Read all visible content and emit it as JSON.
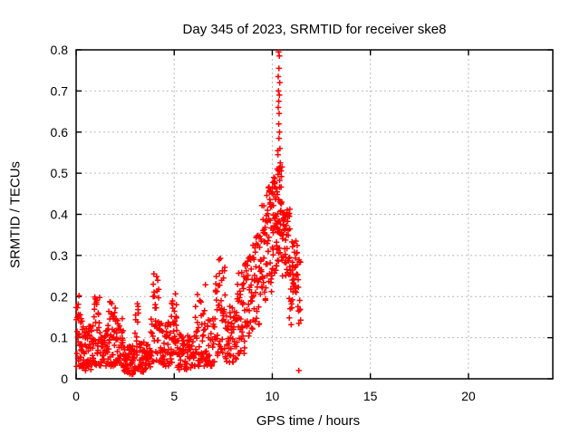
{
  "title": "Day 345 of 2023, SRMTID for receiver ske8",
  "colors": {
    "background": "#ffffff",
    "points": "#ff0000",
    "grid": "#b9b9b9",
    "frame": "#000000",
    "text": "#000000"
  },
  "chart_data": {
    "type": "scatter",
    "title": "Day 345 of 2023, SRMTID for receiver ske8",
    "xlabel": "GPS time / hours",
    "ylabel": "SRMTID / TECUs",
    "xlim": [
      0,
      24.3
    ],
    "ylim": [
      0,
      0.8
    ],
    "xticks": [
      0,
      5,
      10,
      15,
      20
    ],
    "xtick_labels": [
      "0",
      "5",
      "10",
      "15",
      "20"
    ],
    "yticks": [
      0,
      0.1,
      0.2,
      0.3,
      0.4,
      0.5,
      0.6,
      0.7,
      0.8
    ],
    "ytick_labels": [
      "0",
      "0.1",
      "0.2",
      "0.3",
      "0.4",
      "0.5",
      "0.6",
      "0.7",
      "0.8"
    ],
    "grid": true,
    "grid_style": "dashed",
    "legend": "none",
    "marker": "plus",
    "series_name": "SRMTID",
    "description": "Dense scatter of ~1000 red plus markers from 0 to ~11.4 h GPS time; quiet noisy baseline 0.02-0.2 TECU before 8 h with spikes near 1.0, 1.8, 3.0, 4.0 (0.26), 5.0, 6.3, 7.4 (0.30) h; rising ramp 8-10 h from ~0.1 to ~0.45; sharp spike peaking at 0.80 near 10.3 h; tail 0.15-0.42 until data ends at ~11.4 h; no data after 11.4 h.",
    "seed": 20233451,
    "point_bands": [
      [
        0.0,
        0.3,
        28,
        0.03,
        0.18,
        1.3
      ],
      [
        0.05,
        0.25,
        3,
        0.14,
        0.19,
        1.0
      ],
      [
        0.3,
        0.9,
        55,
        0.02,
        0.13,
        1.2
      ],
      [
        0.9,
        1.2,
        30,
        0.03,
        0.2,
        1.5
      ],
      [
        1.2,
        1.6,
        35,
        0.03,
        0.12,
        1.2
      ],
      [
        1.6,
        2.0,
        40,
        0.03,
        0.19,
        1.5
      ],
      [
        2.0,
        2.4,
        35,
        0.03,
        0.15,
        1.3
      ],
      [
        2.4,
        3.0,
        60,
        0.01,
        0.08,
        1.0
      ],
      [
        3.0,
        3.2,
        18,
        0.02,
        0.2,
        1.3
      ],
      [
        3.2,
        3.8,
        50,
        0.015,
        0.09,
        1.0
      ],
      [
        3.8,
        4.3,
        42,
        0.04,
        0.26,
        1.3
      ],
      [
        4.3,
        4.8,
        38,
        0.03,
        0.14,
        1.2
      ],
      [
        4.8,
        5.15,
        32,
        0.04,
        0.215,
        1.3
      ],
      [
        5.15,
        6.0,
        60,
        0.02,
        0.11,
        1.2
      ],
      [
        6.0,
        6.6,
        45,
        0.03,
        0.23,
        1.4
      ],
      [
        6.6,
        7.1,
        38,
        0.03,
        0.16,
        1.3
      ],
      [
        7.1,
        7.6,
        42,
        0.05,
        0.3,
        1.4
      ],
      [
        7.6,
        8.2,
        50,
        0.04,
        0.18,
        1.2
      ],
      [
        8.2,
        8.6,
        36,
        0.06,
        0.26,
        1.1
      ],
      [
        8.6,
        9.0,
        36,
        0.1,
        0.3,
        1.0
      ],
      [
        9.0,
        9.4,
        36,
        0.13,
        0.35,
        1.0
      ],
      [
        9.4,
        9.7,
        30,
        0.17,
        0.43,
        1.0
      ],
      [
        9.7,
        10.0,
        36,
        0.21,
        0.47,
        1.0
      ],
      [
        10.0,
        10.2,
        30,
        0.25,
        0.5,
        1.0
      ],
      [
        10.2,
        10.5,
        48,
        0.27,
        0.53,
        0.9
      ],
      [
        10.5,
        10.9,
        42,
        0.25,
        0.42,
        1.0
      ],
      [
        10.85,
        11.05,
        16,
        0.11,
        0.3,
        1.0
      ],
      [
        11.0,
        11.3,
        26,
        0.21,
        0.335,
        1.0
      ],
      [
        11.3,
        11.45,
        12,
        0.13,
        0.32,
        1.0
      ]
    ],
    "outlier_points": [
      [
        10.32,
        0.795
      ],
      [
        10.36,
        0.785
      ],
      [
        10.34,
        0.755
      ],
      [
        10.3,
        0.735
      ],
      [
        10.38,
        0.72
      ],
      [
        10.31,
        0.7
      ],
      [
        10.36,
        0.69
      ],
      [
        10.33,
        0.675
      ],
      [
        10.3,
        0.66
      ],
      [
        10.35,
        0.645
      ],
      [
        10.33,
        0.62
      ],
      [
        10.37,
        0.6
      ],
      [
        10.34,
        0.585
      ],
      [
        10.39,
        0.56
      ],
      [
        10.28,
        0.555
      ],
      [
        10.29,
        0.545
      ],
      [
        10.41,
        0.525
      ],
      [
        10.36,
        0.505
      ],
      [
        0.15,
        0.202
      ],
      [
        11.35,
        0.02
      ]
    ]
  }
}
